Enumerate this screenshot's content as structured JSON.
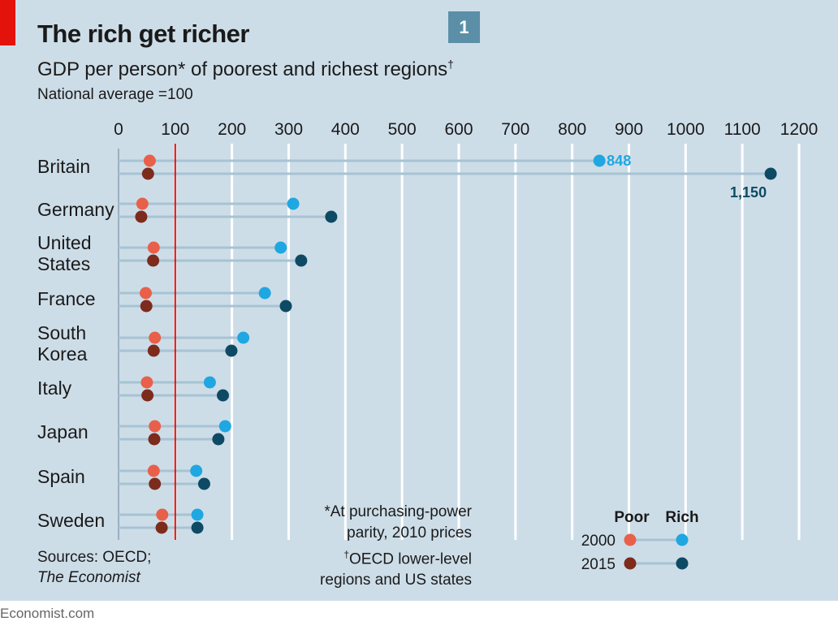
{
  "header": {
    "title": "The rich get richer",
    "subtitle": "GDP per person* of poorest and richest regions",
    "subtitle_mark": "†",
    "unit_note": "National average =100",
    "badge": "1"
  },
  "colors": {
    "background": "#cddde8",
    "grid": "#ffffff",
    "reference_line": "#e3120b",
    "poor_2000": "#e8604a",
    "poor_2015": "#7d2b1c",
    "rich_2000": "#1fa7e1",
    "rich_2015": "#0e4a64",
    "connector": "#a7c3d4",
    "badge": "#5b8fa8"
  },
  "chart_data": {
    "type": "dot-range",
    "x_ticks": [
      "0",
      "100",
      "200",
      "300",
      "400",
      "500",
      "600",
      "700",
      "800",
      "900",
      "1000",
      "1100",
      "1200"
    ],
    "xlim": [
      0,
      1200
    ],
    "reference_value": 100,
    "grid": true,
    "legend_position": "bottom-right",
    "categories": [
      {
        "label": [
          "Britain"
        ],
        "y2000": [
          55,
          848
        ],
        "y2015": [
          52,
          1150
        ]
      },
      {
        "label": [
          "Germany"
        ],
        "y2000": [
          42,
          308
        ],
        "y2015": [
          40,
          375
        ]
      },
      {
        "label": [
          "United",
          "States"
        ],
        "y2000": [
          62,
          286
        ],
        "y2015": [
          61,
          322
        ]
      },
      {
        "label": [
          "France"
        ],
        "y2000": [
          48,
          258
        ],
        "y2015": [
          49,
          295
        ]
      },
      {
        "label": [
          "South",
          "Korea"
        ],
        "y2000": [
          64,
          220
        ],
        "y2015": [
          62,
          199
        ]
      },
      {
        "label": [
          "Italy"
        ],
        "y2000": [
          50,
          161
        ],
        "y2015": [
          51,
          184
        ]
      },
      {
        "label": [
          "Japan"
        ],
        "y2000": [
          64,
          188
        ],
        "y2015": [
          63,
          176
        ]
      },
      {
        "label": [
          "Spain"
        ],
        "y2000": [
          62,
          137
        ],
        "y2015": [
          64,
          151
        ]
      },
      {
        "label": [
          "Sweden"
        ],
        "y2000": [
          77,
          139
        ],
        "y2015": [
          76,
          139
        ]
      }
    ],
    "data_labels": {
      "rich_2000_britain": "848",
      "rich_2015_britain": "1,150"
    },
    "legend": {
      "headers": [
        "Poor",
        "Rich"
      ],
      "rows": [
        "2000",
        "2015"
      ]
    }
  },
  "footnote": {
    "line1": "*At purchasing-power",
    "line2": "parity, 2010 prices",
    "mark": "†",
    "line3": "OECD lower-level",
    "line4": "regions and US states"
  },
  "sources": {
    "line1": "Sources: OECD;",
    "line2": "The Economist"
  },
  "footer": "Economist.com"
}
